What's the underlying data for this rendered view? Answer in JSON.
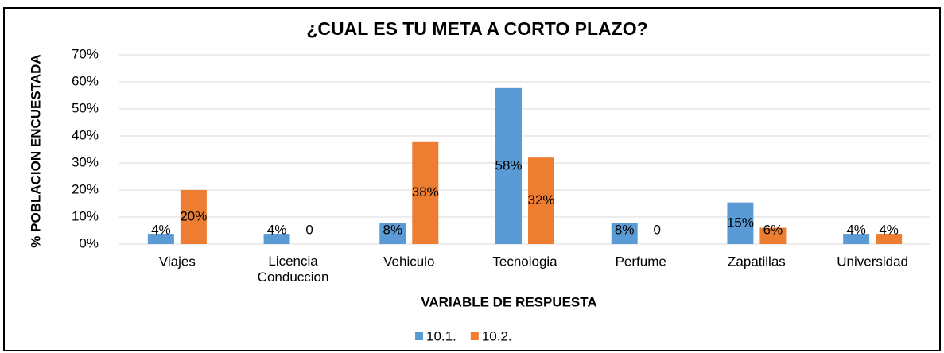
{
  "chart_data": {
    "type": "bar",
    "title": "¿CUAL ES TU META A CORTO PLAZO?",
    "y_label": "% POBLACION ENCUESTADA",
    "x_label": "VARIABLE DE RESPUESTA",
    "categories": [
      "Viajes",
      "Licencia Conduccion",
      "Vehiculo",
      "Tecnologia",
      "Perfume",
      "Zapatillas",
      "Universidad"
    ],
    "series": [
      {
        "name": "10.1.",
        "color": "#5b9bd5",
        "values": [
          3.8,
          3.8,
          7.7,
          57.7,
          7.7,
          15.4,
          3.8
        ],
        "value_labels": [
          "4%",
          "4%",
          "8%",
          "58%",
          "8%",
          "15%",
          "4%"
        ]
      },
      {
        "name": "10.2.",
        "color": "#ed7d31",
        "values": [
          20,
          0,
          38,
          32,
          0,
          6,
          3.8
        ],
        "value_labels": [
          "20%",
          "0",
          "38%",
          "32%",
          "0",
          "6%",
          "4%"
        ]
      }
    ],
    "ylim": [
      0,
      70
    ],
    "yticks": [
      {
        "value": 0,
        "label": "0%"
      },
      {
        "value": 10,
        "label": "10%"
      },
      {
        "value": 20,
        "label": "20%"
      },
      {
        "value": 30,
        "label": "30%"
      },
      {
        "value": 40,
        "label": "40%"
      },
      {
        "value": 50,
        "label": "50%"
      },
      {
        "value": 60,
        "label": "60%"
      },
      {
        "value": 70,
        "label": "70%"
      }
    ],
    "grid": true,
    "legend": "bottom"
  }
}
